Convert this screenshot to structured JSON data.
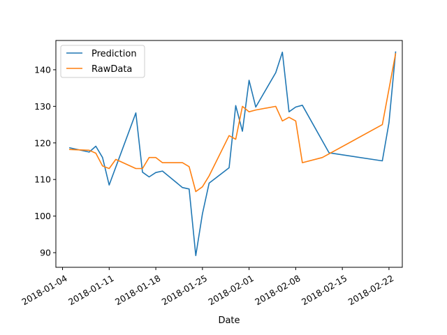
{
  "chart_data": {
    "type": "line",
    "xlabel": "Date",
    "ylabel": "",
    "x_type": "date",
    "xlim": [
      "2018-01-03",
      "2018-02-24"
    ],
    "ylim": [
      86,
      148
    ],
    "x_ticks": [
      "2018-01-04",
      "2018-01-11",
      "2018-01-18",
      "2018-01-25",
      "2018-02-01",
      "2018-02-08",
      "2018-02-15",
      "2018-02-22"
    ],
    "y_ticks": [
      90,
      100,
      110,
      120,
      130,
      140
    ],
    "grid": false,
    "legend_position": "top-left",
    "series": [
      {
        "name": "Prediction",
        "color": "#1f77b4",
        "points": [
          [
            "2018-01-05",
            118.7
          ],
          [
            "2018-01-08",
            117.5
          ],
          [
            "2018-01-09",
            119.1
          ],
          [
            "2018-01-10",
            116.0
          ],
          [
            "2018-01-11",
            108.5
          ],
          [
            "2018-01-15",
            128.2
          ],
          [
            "2018-01-16",
            112.0
          ],
          [
            "2018-01-17",
            110.7
          ],
          [
            "2018-01-18",
            111.9
          ],
          [
            "2018-01-19",
            112.3
          ],
          [
            "2018-01-22",
            107.8
          ],
          [
            "2018-01-23",
            107.4
          ],
          [
            "2018-01-24",
            89.2
          ],
          [
            "2018-01-25",
            100.6
          ],
          [
            "2018-01-26",
            109.0
          ],
          [
            "2018-01-29",
            113.2
          ],
          [
            "2018-01-30",
            130.2
          ],
          [
            "2018-01-31",
            123.2
          ],
          [
            "2018-02-01",
            137.1
          ],
          [
            "2018-02-02",
            129.8
          ],
          [
            "2018-02-05",
            139.2
          ],
          [
            "2018-02-06",
            144.8
          ],
          [
            "2018-02-07",
            128.5
          ],
          [
            "2018-02-08",
            129.8
          ],
          [
            "2018-02-09",
            130.3
          ],
          [
            "2018-02-13",
            117.3
          ],
          [
            "2018-02-21",
            115.1
          ],
          [
            "2018-02-22",
            125.5
          ],
          [
            "2018-02-23",
            145.0
          ]
        ]
      },
      {
        "name": "RawData",
        "color": "#ff7f0e",
        "points": [
          [
            "2018-01-05",
            118.2
          ],
          [
            "2018-01-08",
            118.0
          ],
          [
            "2018-01-09",
            117.2
          ],
          [
            "2018-01-10",
            113.7
          ],
          [
            "2018-01-11",
            113.0
          ],
          [
            "2018-01-12",
            115.5
          ],
          [
            "2018-01-15",
            113.0
          ],
          [
            "2018-01-16",
            113.0
          ],
          [
            "2018-01-17",
            116.0
          ],
          [
            "2018-01-18",
            116.0
          ],
          [
            "2018-01-19",
            114.6
          ],
          [
            "2018-01-22",
            114.6
          ],
          [
            "2018-01-23",
            113.5
          ],
          [
            "2018-01-24",
            106.7
          ],
          [
            "2018-01-25",
            108.0
          ],
          [
            "2018-01-26",
            111.0
          ],
          [
            "2018-01-29",
            122.0
          ],
          [
            "2018-01-30",
            121.0
          ],
          [
            "2018-01-31",
            130.0
          ],
          [
            "2018-02-01",
            128.5
          ],
          [
            "2018-02-02",
            129.0
          ],
          [
            "2018-02-05",
            130.0
          ],
          [
            "2018-02-06",
            126.0
          ],
          [
            "2018-02-07",
            127.0
          ],
          [
            "2018-02-08",
            126.0
          ],
          [
            "2018-02-09",
            114.6
          ],
          [
            "2018-02-12",
            116.0
          ],
          [
            "2018-02-21",
            125.0
          ],
          [
            "2018-02-23",
            144.5
          ]
        ]
      }
    ]
  }
}
